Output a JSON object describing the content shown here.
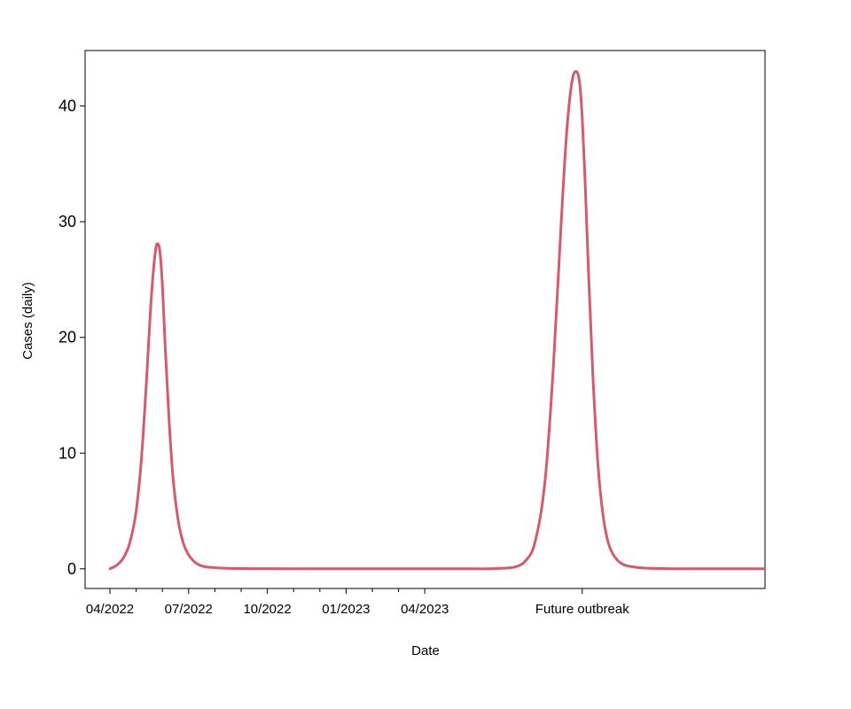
{
  "chart_data": {
    "type": "line",
    "title": "",
    "xlabel": "Date",
    "ylabel": "Cases (daily)",
    "ylim": [
      -1.7,
      44.8
    ],
    "y_ticks": [
      0,
      10,
      20,
      30,
      40
    ],
    "grid": false,
    "legend": "none",
    "x_ticks": [
      {
        "label": "04/2022",
        "x": 0
      },
      {
        "label": "07/2022",
        "x": 3
      },
      {
        "label": "10/2022",
        "x": 6
      },
      {
        "label": "01/2023",
        "x": 9
      },
      {
        "label": "04/2023",
        "x": 12
      },
      {
        "label": "Future outbreak",
        "x": 18
      }
    ],
    "series": [
      {
        "color": "#d45a6e",
        "x": [
          0,
          0.25,
          0.5,
          0.75,
          1.0,
          1.2,
          1.4,
          1.55,
          1.7,
          1.8,
          1.9,
          2.0,
          2.1,
          2.25,
          2.4,
          2.6,
          2.8,
          3.0,
          3.25,
          3.5,
          4.0,
          4.5,
          5.0,
          6.0,
          8.0,
          10.0,
          12.0,
          14.0,
          15.0,
          15.5,
          15.8,
          16.2,
          16.6,
          16.9,
          17.2,
          17.4,
          17.6,
          17.75,
          17.9,
          18.0,
          18.1,
          18.25,
          18.4,
          18.6,
          18.8,
          19.0,
          19.25,
          19.5,
          20.0,
          20.5,
          21.0,
          22.0,
          23.0,
          24.0,
          25.0
        ],
        "y": [
          0,
          0.3,
          0.9,
          2.2,
          5.0,
          9.5,
          16.5,
          22.5,
          26.8,
          28.1,
          27.5,
          24.5,
          19.5,
          13.0,
          8.0,
          4.2,
          2.2,
          1.2,
          0.55,
          0.25,
          0.1,
          0.04,
          0.02,
          0.01,
          0,
          0,
          0,
          0,
          0.05,
          0.2,
          0.6,
          2.3,
          8.0,
          17.5,
          30.0,
          37.5,
          42.0,
          43.0,
          42.0,
          39.0,
          34.0,
          25.0,
          17.0,
          9.0,
          4.5,
          2.2,
          1.0,
          0.45,
          0.15,
          0.05,
          0.02,
          0,
          0,
          0,
          0
        ]
      }
    ]
  }
}
